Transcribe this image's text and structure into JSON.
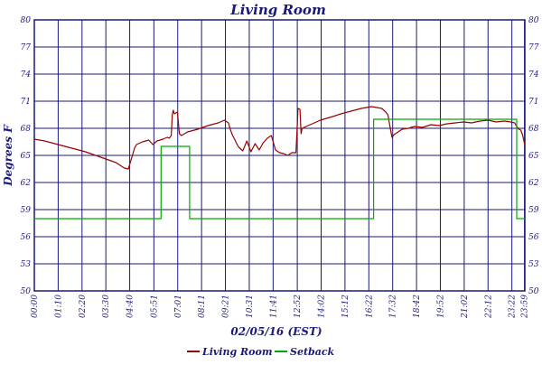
{
  "chart_data": {
    "type": "line",
    "title": "Living Room",
    "xlabel": "02/05/16 (EST)",
    "ylabel": "Degrees F",
    "ylim": [
      50,
      80
    ],
    "yticks": [
      "50",
      "53",
      "56",
      "59",
      "62",
      "65",
      "68",
      "71",
      "74",
      "77",
      "80"
    ],
    "x_tick_labels": [
      "00:00",
      "01:10",
      "02:20",
      "03:30",
      "04:40",
      "05:51",
      "07:01",
      "08:11",
      "09:21",
      "10:31",
      "11:41",
      "12:52",
      "14:02",
      "15:12",
      "16:22",
      "17:32",
      "18:42",
      "19:52",
      "21:02",
      "22:12",
      "23:22",
      "23:59"
    ],
    "x_tick_hours": [
      0,
      1.1667,
      2.3333,
      3.5,
      4.6667,
      5.85,
      7.0167,
      8.1833,
      9.35,
      10.5167,
      11.6833,
      12.8667,
      14.0333,
      15.2,
      16.3667,
      17.5333,
      18.7,
      19.8667,
      21.0333,
      22.2,
      23.3667,
      23.9833
    ],
    "grid": true,
    "legend_position": "bottom",
    "colors": {
      "living_room": "#990000",
      "setback": "#00aa00",
      "grid": "#1a1a7a",
      "text": "#1a1a7a"
    },
    "series": [
      {
        "name": "Living Room",
        "color": "#990000",
        "x_hours": [
          0,
          0.5,
          1,
          1.5,
          2,
          2.5,
          3,
          3.5,
          4,
          4.4,
          4.6,
          4.8,
          4.9,
          5.0,
          5.3,
          5.6,
          5.8,
          6.0,
          6.3,
          6.5,
          6.6,
          6.7,
          6.75,
          6.8,
          6.85,
          7.0,
          7.1,
          7.2,
          7.5,
          8.0,
          8.5,
          9.0,
          9.3,
          9.5,
          9.6,
          9.7,
          9.8,
          9.9,
          10.0,
          10.2,
          10.4,
          10.6,
          10.8,
          11.0,
          11.2,
          11.4,
          11.6,
          11.8,
          12.0,
          12.2,
          12.4,
          12.6,
          12.8,
          12.85,
          12.9,
          13.0,
          13.05,
          13.1,
          13.3,
          13.5,
          13.8,
          14.0,
          14.3,
          14.6,
          15.0,
          15.5,
          16.0,
          16.5,
          17.0,
          17.2,
          17.3,
          17.4,
          17.5,
          17.6,
          17.8,
          18.0,
          18.3,
          18.6,
          19.0,
          19.4,
          19.8,
          20.2,
          20.6,
          21.0,
          21.4,
          21.8,
          22.2,
          22.6,
          23.0,
          23.3,
          23.5,
          23.6,
          23.7,
          23.8,
          23.9,
          24.0
        ],
        "values": [
          66.8,
          66.6,
          66.3,
          66.0,
          65.7,
          65.4,
          65.0,
          64.6,
          64.2,
          63.6,
          63.5,
          65.0,
          65.8,
          66.2,
          66.5,
          66.7,
          66.2,
          66.6,
          66.8,
          67.0,
          66.9,
          67.2,
          69.5,
          70.0,
          69.6,
          69.8,
          67.4,
          67.2,
          67.6,
          67.9,
          68.3,
          68.6,
          68.9,
          68.6,
          67.8,
          67.2,
          66.8,
          66.3,
          65.9,
          65.5,
          66.6,
          65.4,
          66.3,
          65.6,
          66.4,
          66.9,
          67.2,
          65.6,
          65.3,
          65.2,
          65.0,
          65.3,
          65.3,
          67.5,
          70.2,
          70.1,
          67.4,
          68.0,
          68.2,
          68.4,
          68.7,
          68.9,
          69.1,
          69.3,
          69.6,
          69.9,
          70.2,
          70.4,
          70.2,
          69.8,
          69.5,
          68.2,
          67.0,
          67.3,
          67.6,
          67.9,
          68.0,
          68.2,
          68.1,
          68.4,
          68.3,
          68.5,
          68.6,
          68.7,
          68.6,
          68.8,
          68.9,
          68.7,
          68.8,
          68.7,
          68.6,
          68.2,
          67.9,
          67.8,
          67.2,
          66.1
        ]
      },
      {
        "name": "Setback",
        "color": "#00aa00",
        "x_hours": [
          0,
          6.2,
          6.2,
          7.6,
          7.6,
          16.6,
          16.6,
          23.6,
          23.6,
          24.0
        ],
        "values": [
          58,
          58,
          66,
          66,
          58,
          58,
          69,
          69,
          58,
          58
        ]
      }
    ]
  }
}
